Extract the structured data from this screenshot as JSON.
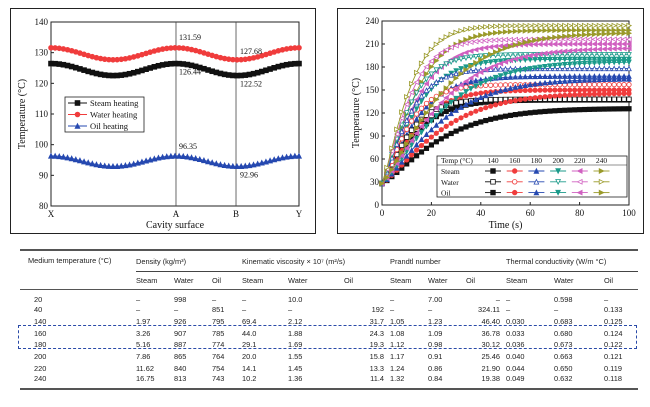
{
  "chart_data": [
    {
      "type": "line",
      "xlabel": "Cavity surface",
      "ylabel": "Temperature (°C)",
      "ylim": [
        80,
        140
      ],
      "yticks": [
        "80",
        "90",
        "100",
        "110",
        "120",
        "130",
        "140"
      ],
      "xticks": [
        "X",
        "A",
        "B",
        "Y"
      ],
      "legend_position": "center-left",
      "series": [
        {
          "name": "Steam heating",
          "color": "#111111",
          "marker": "square",
          "peak": 126.44,
          "trough": 122.52
        },
        {
          "name": "Water heating",
          "color": "#f03c3c",
          "marker": "circle",
          "peak": 131.59,
          "trough": 127.68
        },
        {
          "name": "Oil heating",
          "color": "#2548b0",
          "marker": "triangle-up",
          "peak": 96.35,
          "trough": 92.96
        }
      ],
      "annotations": [
        "131.59",
        "127.68",
        "126.44",
        "122.52",
        "96.35",
        "92.96"
      ]
    },
    {
      "type": "line",
      "xlabel": "Time (s)",
      "ylabel": "Temperature (°C)",
      "xlim": [
        0,
        100
      ],
      "ylim": [
        0,
        240
      ],
      "xticks": [
        "0",
        "20",
        "40",
        "60",
        "80",
        "100"
      ],
      "yticks": [
        "0",
        "30",
        "60",
        "90",
        "120",
        "150",
        "180",
        "210",
        "240"
      ],
      "initial_temperature": 28,
      "legend": {
        "header": "Temp (°C)",
        "temps": [
          "140",
          "160",
          "180",
          "200",
          "220",
          "240"
        ],
        "media": [
          "Steam",
          "Water",
          "Oil"
        ],
        "colors": [
          "#111111",
          "#f03c3c",
          "#2548b0",
          "#1a9a8a",
          "#d060c0",
          "#9a9a2a"
        ]
      },
      "series": [
        {
          "medium": "Steam",
          "fill": "solid",
          "finals": [
            137,
            150,
            168,
            190,
            210,
            228
          ],
          "tau": 15
        },
        {
          "medium": "Water",
          "fill": "open",
          "finals": [
            138,
            157,
            178,
            196,
            216,
            234
          ],
          "tau": 12
        },
        {
          "medium": "Oil",
          "fill": "half",
          "finals": [
            126,
            146,
            165,
            187,
            205,
            225
          ],
          "tau": 26
        }
      ]
    }
  ],
  "table": {
    "col0": "Medium temperature (°C)",
    "groups": [
      "Density (kg/m³)",
      "Kinematic viscosity × 10⁷ (m²/s)",
      "Prandtl number",
      "Thermal conductivity (W/m °C)"
    ],
    "sub": [
      "Steam",
      "Water",
      "Oil"
    ],
    "rows": [
      [
        "20",
        "–",
        "998",
        "–",
        "–",
        "10.0",
        "",
        "–",
        "7.00",
        "–",
        "–",
        "0.598",
        "–"
      ],
      [
        "40",
        "–",
        "–",
        "851",
        "–",
        "–",
        "192",
        "–",
        "–",
        "324.11",
        "–",
        "–",
        "0.133"
      ],
      [
        "140",
        "1.97",
        "926",
        "795",
        "69.4",
        "2.12",
        "31.7",
        "1.05",
        "1.23",
        "46.40",
        "0.030",
        "0.683",
        "0.125"
      ],
      [
        "160",
        "3.26",
        "907",
        "785",
        "44.0",
        "1.88",
        "24.3",
        "1.08",
        "1.09",
        "36.78",
        "0.033",
        "0.680",
        "0.124"
      ],
      [
        "180",
        "5.16",
        "887",
        "774",
        "29.1",
        "1.69",
        "19.3",
        "1.12",
        "0.98",
        "30.12",
        "0.036",
        "0.673",
        "0.122"
      ],
      [
        "200",
        "7.86",
        "865",
        "764",
        "20.0",
        "1.55",
        "15.8",
        "1.17",
        "0.91",
        "25.46",
        "0.040",
        "0.663",
        "0.121"
      ],
      [
        "220",
        "11.62",
        "840",
        "754",
        "14.1",
        "1.45",
        "13.3",
        "1.24",
        "0.86",
        "21.90",
        "0.044",
        "0.650",
        "0.119"
      ],
      [
        "240",
        "16.75",
        "813",
        "743",
        "10.2",
        "1.36",
        "11.4",
        "1.32",
        "0.84",
        "19.38",
        "0.049",
        "0.632",
        "0.118"
      ]
    ]
  }
}
